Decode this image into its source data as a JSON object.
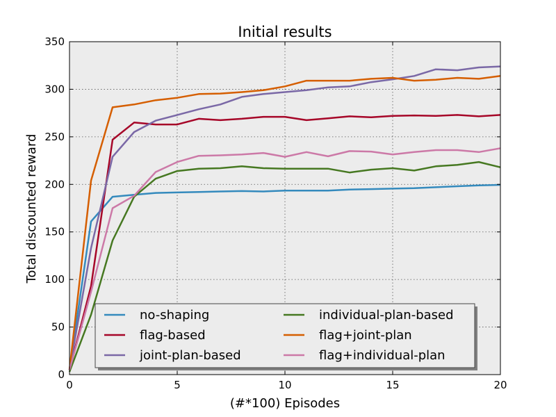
{
  "chart_data": {
    "type": "line",
    "title": "Initial results",
    "xlabel": "(#*100) Episodes",
    "ylabel": "Total discounted reward",
    "xlim": [
      0,
      20
    ],
    "ylim": [
      0,
      350
    ],
    "xticks": [
      0,
      5,
      10,
      15,
      20
    ],
    "yticks": [
      0,
      50,
      100,
      150,
      200,
      250,
      300,
      350
    ],
    "grid": true,
    "legend_position": "lower-center",
    "legend_columns": 2,
    "background_color": "#ececec",
    "x": [
      0,
      1,
      2,
      3,
      4,
      5,
      6,
      7,
      8,
      9,
      10,
      11,
      12,
      13,
      14,
      15,
      16,
      17,
      18,
      19,
      20
    ],
    "series": [
      {
        "name": "no-shaping",
        "color": "#348abd",
        "values": [
          5,
          161,
          187,
          189,
          191,
          191.5,
          192,
          192.5,
          193,
          192.5,
          193.5,
          193.5,
          193.5,
          194.5,
          195,
          195.5,
          196,
          197,
          198,
          199,
          199.5
        ]
      },
      {
        "name": "flag-based",
        "color": "#a60628",
        "values": [
          5,
          93,
          247,
          265,
          263,
          263,
          269,
          267.5,
          269,
          271,
          271,
          267.5,
          269.5,
          271.5,
          270.5,
          272,
          272.5,
          272,
          273,
          271.5,
          273
        ]
      },
      {
        "name": "joint-plan-based",
        "color": "#7a68a6",
        "values": [
          5,
          133,
          229,
          255,
          267,
          273,
          279,
          284,
          292,
          295,
          297,
          299,
          302,
          303,
          307.5,
          310.5,
          314,
          321,
          320,
          323,
          324
        ]
      },
      {
        "name": "individual-plan-based",
        "color": "#467821",
        "values": [
          3,
          63,
          141,
          187,
          206,
          214,
          216.5,
          217,
          219,
          217,
          216.5,
          216.5,
          216.5,
          212.5,
          215.5,
          217,
          214.5,
          219,
          220.5,
          223.5,
          218
        ]
      },
      {
        "name": "flag+joint-plan",
        "color": "#d55e00",
        "values": [
          5,
          204,
          281,
          284,
          288.5,
          291,
          295,
          295.5,
          297,
          299,
          303,
          309,
          309,
          309,
          311,
          312,
          309,
          310,
          312,
          311,
          314
        ]
      },
      {
        "name": "flag+individual-plan",
        "color": "#cc79a7",
        "values": [
          5,
          87,
          175,
          188,
          213,
          223.5,
          230,
          230.5,
          231.5,
          233,
          229,
          234,
          229.5,
          235,
          234.5,
          231.5,
          234,
          236,
          236,
          234,
          238
        ]
      }
    ]
  }
}
